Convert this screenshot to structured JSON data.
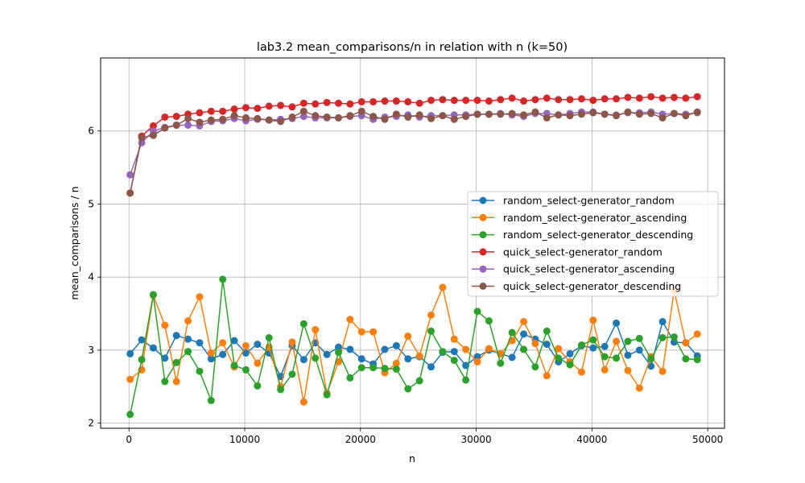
{
  "chart_data": {
    "type": "line",
    "title": "lab3.2 mean_comparisons/n in relation with n (k=50)",
    "xlabel": "n",
    "ylabel": "mean_comparisons / n",
    "xlim": [
      -2450,
      51450
    ],
    "ylim": [
      1.93,
      7.0
    ],
    "xticks": [
      0,
      10000,
      20000,
      30000,
      40000,
      50000
    ],
    "yticks": [
      2,
      3,
      4,
      5,
      6
    ],
    "grid": true,
    "legend_position": "center-right",
    "x": [
      100,
      1100,
      2100,
      3100,
      4100,
      5100,
      6100,
      7100,
      8100,
      9100,
      10100,
      11100,
      12100,
      13100,
      14100,
      15100,
      16100,
      17100,
      18100,
      19100,
      20100,
      21100,
      22100,
      23100,
      24100,
      25100,
      26100,
      27100,
      28100,
      29100,
      30100,
      31100,
      32100,
      33100,
      34100,
      35100,
      36100,
      37100,
      38100,
      39100,
      40100,
      41100,
      42100,
      43100,
      44100,
      45100,
      46100,
      47100,
      48100,
      49100
    ],
    "series": [
      {
        "name": "random_select-generator_random",
        "color": "#1f77b4",
        "values": [
          2.95,
          3.14,
          3.03,
          2.89,
          3.2,
          3.15,
          3.1,
          2.88,
          2.94,
          3.13,
          2.96,
          3.08,
          2.96,
          2.64,
          3.06,
          2.87,
          3.1,
          2.94,
          3.04,
          3.01,
          2.88,
          2.81,
          3.01,
          3.06,
          2.88,
          2.91,
          2.77,
          2.97,
          2.98,
          2.79,
          2.91,
          3.0,
          2.95,
          2.9,
          3.22,
          3.15,
          3.08,
          2.84,
          2.95,
          3.06,
          3.03,
          3.05,
          3.37,
          2.93,
          3.0,
          2.78,
          3.39,
          3.11,
          3.1,
          2.92
        ]
      },
      {
        "name": "random_select-generator_ascending",
        "color": "#ff7f0e",
        "values": [
          2.6,
          2.73,
          3.75,
          3.34,
          2.57,
          3.4,
          3.73,
          2.96,
          3.1,
          2.77,
          3.06,
          2.82,
          3.04,
          2.5,
          3.11,
          2.29,
          3.28,
          2.41,
          2.84,
          3.42,
          3.25,
          3.25,
          2.69,
          2.82,
          3.19,
          2.92,
          3.48,
          3.86,
          3.15,
          3.01,
          2.84,
          3.02,
          2.95,
          3.13,
          3.39,
          3.09,
          2.65,
          3.02,
          2.84,
          2.7,
          3.41,
          2.73,
          3.12,
          2.72,
          2.48,
          2.91,
          2.71,
          3.82,
          3.1,
          3.22
        ]
      },
      {
        "name": "random_select-generator_descending",
        "color": "#2ca02c",
        "values": [
          2.12,
          2.87,
          3.76,
          2.57,
          2.83,
          2.98,
          2.71,
          2.31,
          3.97,
          2.79,
          2.73,
          2.51,
          3.17,
          2.46,
          2.67,
          3.36,
          2.89,
          2.39,
          2.97,
          2.62,
          2.76,
          2.76,
          2.75,
          2.74,
          2.47,
          2.58,
          3.26,
          2.98,
          2.86,
          2.59,
          3.53,
          3.4,
          2.82,
          3.24,
          3.01,
          2.77,
          3.26,
          2.89,
          2.8,
          3.07,
          3.14,
          2.91,
          2.89,
          3.12,
          3.16,
          2.88,
          3.17,
          3.18,
          2.88,
          2.87
        ]
      },
      {
        "name": "quick_select-generator_random",
        "color": "#d62728",
        "values": [
          5.15,
          5.93,
          6.07,
          6.19,
          6.2,
          6.23,
          6.25,
          6.27,
          6.27,
          6.3,
          6.32,
          6.31,
          6.34,
          6.35,
          6.33,
          6.38,
          6.37,
          6.39,
          6.38,
          6.37,
          6.4,
          6.4,
          6.41,
          6.41,
          6.4,
          6.38,
          6.42,
          6.43,
          6.42,
          6.42,
          6.42,
          6.41,
          6.43,
          6.45,
          6.41,
          6.43,
          6.45,
          6.43,
          6.43,
          6.44,
          6.42,
          6.44,
          6.44,
          6.46,
          6.45,
          6.47,
          6.45,
          6.46,
          6.45,
          6.47
        ]
      },
      {
        "name": "quick_select-generator_ascending",
        "color": "#9467bd",
        "values": [
          5.4,
          5.84,
          6.0,
          6.05,
          6.08,
          6.08,
          6.07,
          6.13,
          6.14,
          6.17,
          6.14,
          6.16,
          6.15,
          6.16,
          6.17,
          6.2,
          6.18,
          6.18,
          6.18,
          6.2,
          6.21,
          6.16,
          6.19,
          6.2,
          6.22,
          6.19,
          6.21,
          6.21,
          6.22,
          6.22,
          6.23,
          6.23,
          6.24,
          6.22,
          6.2,
          6.24,
          6.24,
          6.22,
          6.24,
          6.26,
          6.26,
          6.23,
          6.22,
          6.25,
          6.25,
          6.26,
          6.23,
          6.24,
          6.23,
          6.25
        ]
      },
      {
        "name": "quick_select-generator_descending",
        "color": "#8c564b",
        "values": [
          5.15,
          5.91,
          5.94,
          6.04,
          6.08,
          6.17,
          6.12,
          6.15,
          6.16,
          6.21,
          6.18,
          6.17,
          6.15,
          6.13,
          6.19,
          6.27,
          6.21,
          6.19,
          6.18,
          6.21,
          6.27,
          6.2,
          6.16,
          6.23,
          6.19,
          6.22,
          6.17,
          6.21,
          6.16,
          6.2,
          6.23,
          6.23,
          6.23,
          6.24,
          6.22,
          6.26,
          6.18,
          6.22,
          6.21,
          6.23,
          6.25,
          6.23,
          6.21,
          6.26,
          6.23,
          6.24,
          6.18,
          6.24,
          6.21,
          6.26
        ]
      }
    ]
  }
}
